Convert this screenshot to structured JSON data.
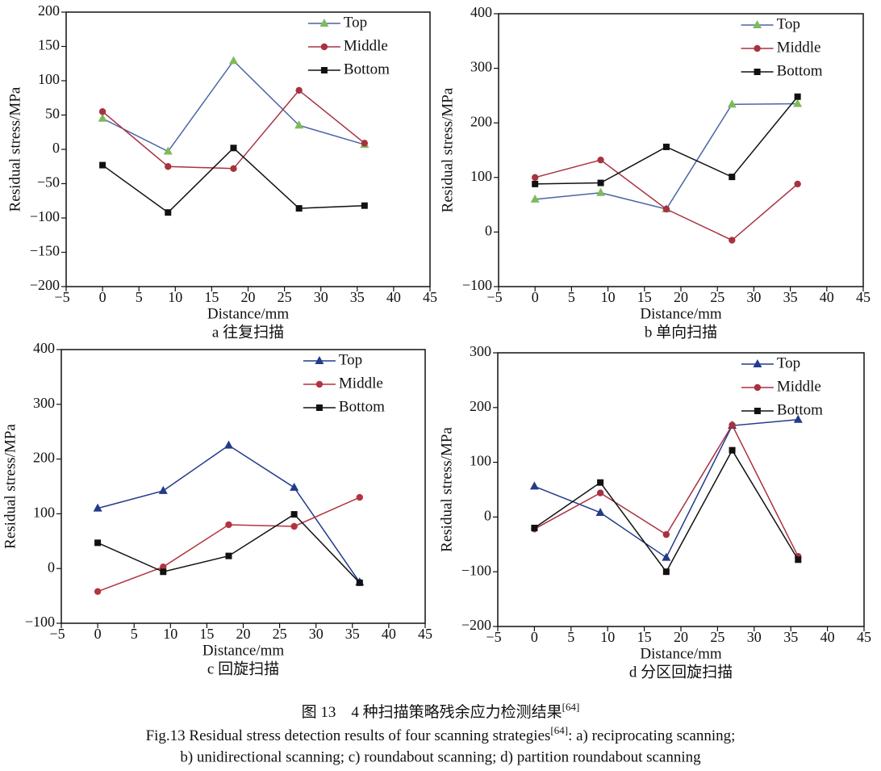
{
  "caption": {
    "cn": "图 13　4 种扫描策略残余应力检测结果",
    "cn_ref": "[64]",
    "en": "Fig.13 Residual stress detection results of four scanning strategies",
    "en_ref": "[64]",
    "en_tail": ": a) reciprocating scanning;",
    "en_line2": "b) unidirectional scanning; c) roundabout scanning; d) partition roundabout scanning"
  },
  "chart_data": [
    {
      "type": "line",
      "caption": "a 往复扫描",
      "x_label": "Distance/mm",
      "y_label": "Residual stress/MPa",
      "x": [
        0,
        9,
        18,
        27,
        36
      ],
      "xlim": [
        -5,
        45
      ],
      "xticks": [
        {
          "value": -5,
          "label": "−5"
        },
        0,
        5,
        10,
        15,
        20,
        25,
        30,
        35,
        40,
        45
      ],
      "ylim": [
        -200,
        200
      ],
      "yticks": [
        {
          "value": -200,
          "label": "−200"
        },
        {
          "value": -150,
          "label": "−150"
        },
        {
          "value": -100,
          "label": "−100"
        },
        {
          "value": -50,
          "label": "−50"
        },
        0,
        50,
        100,
        150,
        200
      ],
      "legend": "upper right",
      "series": [
        {
          "name": "Top",
          "color": "#4a64a6",
          "marker_color": "#7dbb5a",
          "marker": "triangle",
          "values": [
            45,
            -3,
            129,
            35,
            7
          ]
        },
        {
          "name": "Middle",
          "color": "#a83240",
          "marker_color": "#a83240",
          "marker": "circle",
          "values": [
            55,
            -25,
            -28,
            86,
            9
          ]
        },
        {
          "name": "Bottom",
          "color": "#111111",
          "marker_color": "#111111",
          "marker": "square",
          "values": [
            -23,
            -92,
            2,
            -86,
            -82
          ]
        }
      ]
    },
    {
      "type": "line",
      "caption": "b 单向扫描",
      "x_label": "Distance/mm",
      "y_label": "Residual stress/MPa",
      "x": [
        0,
        9,
        18,
        27,
        36
      ],
      "xlim": [
        -5,
        45
      ],
      "xticks": [
        {
          "value": -5,
          "label": "−5"
        },
        0,
        5,
        10,
        15,
        20,
        25,
        30,
        35,
        40,
        45
      ],
      "ylim": [
        -100,
        400
      ],
      "yticks": [
        {
          "value": -100,
          "label": "−100"
        },
        0,
        100,
        200,
        300,
        400
      ],
      "legend": "upper right",
      "series": [
        {
          "name": "Top",
          "color": "#4a64a6",
          "marker_color": "#7dbb5a",
          "marker": "triangle",
          "values": [
            60,
            72,
            42,
            234,
            235
          ]
        },
        {
          "name": "Middle",
          "color": "#a83240",
          "marker_color": "#a83240",
          "marker": "circle",
          "values": [
            100,
            132,
            42,
            -15,
            88
          ]
        },
        {
          "name": "Bottom",
          "color": "#111111",
          "marker_color": "#111111",
          "marker": "square",
          "values": [
            88,
            90,
            156,
            101,
            248
          ]
        }
      ]
    },
    {
      "type": "line",
      "caption": "c 回旋扫描",
      "x_label": "Distance/mm",
      "y_label": "Residual stress/MPa",
      "x": [
        0,
        9,
        18,
        27,
        36
      ],
      "xlim": [
        -5,
        45
      ],
      "xticks": [
        {
          "value": -5,
          "label": "−5"
        },
        0,
        5,
        10,
        15,
        20,
        25,
        30,
        35,
        40,
        45
      ],
      "ylim": [
        -100,
        400
      ],
      "yticks": [
        {
          "value": -100,
          "label": "−100"
        },
        0,
        100,
        200,
        300,
        400
      ],
      "legend": "upper right",
      "series": [
        {
          "name": "Top",
          "color": "#233a8a",
          "marker_color": "#233a8a",
          "marker": "triangle",
          "values": [
            110,
            142,
            225,
            148,
            -25
          ]
        },
        {
          "name": "Middle",
          "color": "#b5333f",
          "marker_color": "#b5333f",
          "marker": "circle",
          "values": [
            -42,
            3,
            80,
            77,
            130
          ]
        },
        {
          "name": "Bottom",
          "color": "#111111",
          "marker_color": "#111111",
          "marker": "square",
          "values": [
            47,
            -6,
            23,
            99,
            -26
          ]
        }
      ]
    },
    {
      "type": "line",
      "caption": "d 分区回旋扫描",
      "x_label": "Distance/mm",
      "y_label": "Residual stress/MPa",
      "x": [
        0,
        9,
        18,
        27,
        36
      ],
      "xlim": [
        -5,
        45
      ],
      "xticks": [
        {
          "value": -5,
          "label": "−5"
        },
        0,
        5,
        10,
        15,
        20,
        25,
        30,
        35,
        40,
        45
      ],
      "ylim": [
        -200,
        300
      ],
      "yticks": [
        {
          "value": -200,
          "label": "−200"
        },
        {
          "value": -100,
          "label": "−100"
        },
        0,
        100,
        200,
        300
      ],
      "legend": "upper right",
      "series": [
        {
          "name": "Top",
          "color": "#233a8a",
          "marker_color": "#233a8a",
          "marker": "triangle",
          "values": [
            56,
            8,
            -74,
            167,
            178
          ]
        },
        {
          "name": "Middle",
          "color": "#a83240",
          "marker_color": "#a83240",
          "marker": "circle",
          "values": [
            -22,
            44,
            -32,
            168,
            -72
          ]
        },
        {
          "name": "Bottom",
          "color": "#111111",
          "marker_color": "#111111",
          "marker": "square",
          "values": [
            -20,
            63,
            -100,
            122,
            -78
          ]
        }
      ]
    }
  ]
}
